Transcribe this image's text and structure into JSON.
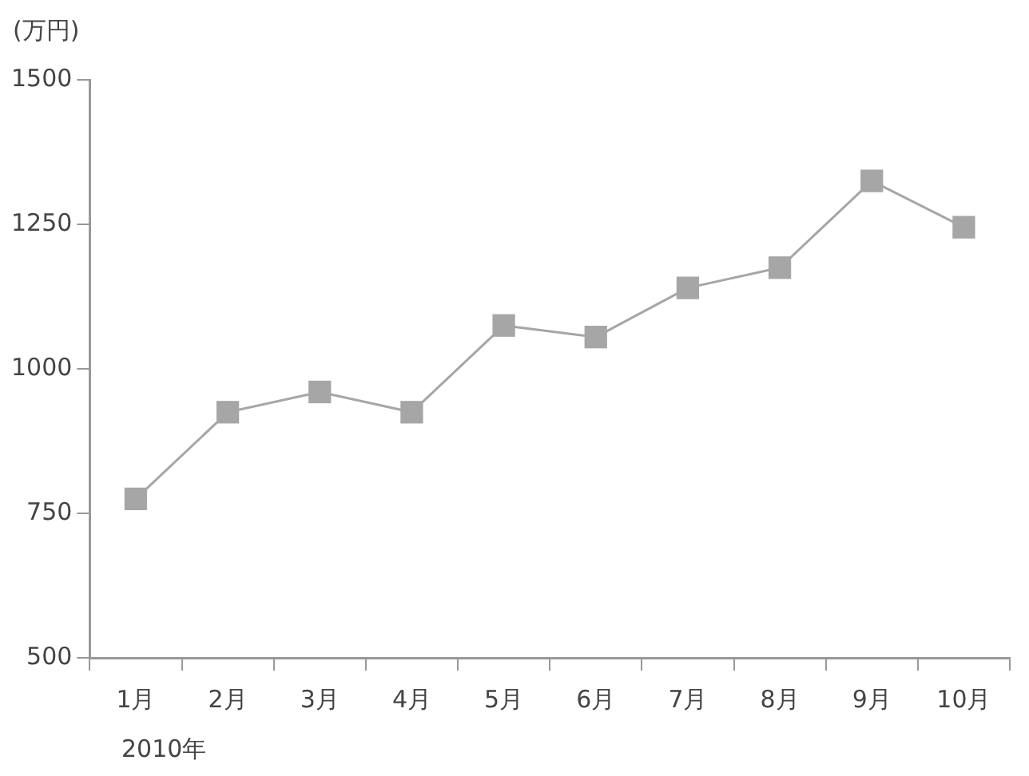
{
  "chart_data": {
    "type": "line",
    "ylabel": "(万円)",
    "annotations": [
      "2010年"
    ],
    "categories": [
      "1月",
      "2月",
      "3月",
      "4月",
      "5月",
      "6月",
      "7月",
      "8月",
      "9月",
      "10月"
    ],
    "series": [
      {
        "color": "#a6a6a6",
        "values": [
          775,
          925,
          960,
          925,
          1075,
          1055,
          1140,
          1175,
          1325,
          1245
        ]
      }
    ],
    "ylim": [
      500,
      1500
    ],
    "yticks": [
      500,
      750,
      1000,
      1250,
      1500
    ],
    "grid": false,
    "legend": false,
    "marker": "square",
    "line_style": "solid"
  }
}
